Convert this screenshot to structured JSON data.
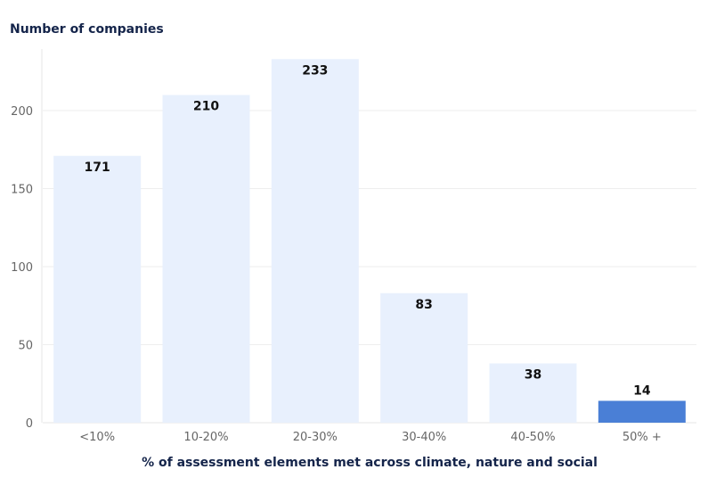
{
  "chart_data": {
    "type": "bar",
    "title": "Number of companies",
    "xlabel": "% of assessment elements met across climate, nature and social",
    "ylabel": "",
    "categories": [
      "<10%",
      "10-20%",
      "20-30%",
      "30-40%",
      "40-50%",
      "50% +"
    ],
    "values": [
      171,
      210,
      233,
      83,
      38,
      14
    ],
    "ylim": [
      0,
      240
    ],
    "yticks": [
      0,
      50,
      100,
      150,
      200
    ],
    "grid": true,
    "legend": "none",
    "colors": {
      "default": "#e8f0fd",
      "highlight": "#4a7fd6",
      "highlight_index": 5
    }
  }
}
